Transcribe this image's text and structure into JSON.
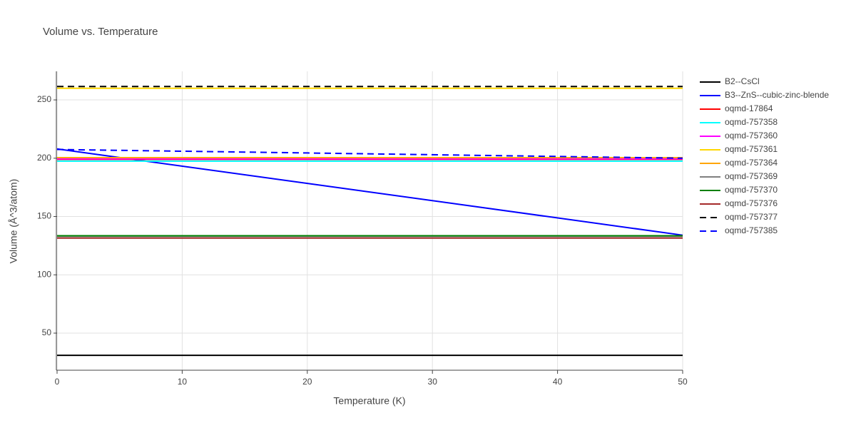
{
  "chart_data": {
    "type": "line",
    "title": "Volume vs. Temperature",
    "x_label": "Temperature (K)",
    "y_label": "Volume (Å^3/atom)",
    "xlim": [
      0,
      50
    ],
    "xticks": [
      0,
      10,
      20,
      30,
      40,
      50
    ],
    "ylim": [
      18.2,
      274.5
    ],
    "yticks": [
      50,
      100,
      150,
      200,
      250
    ],
    "grid": true,
    "legend": "right",
    "series": [
      {
        "name": "B2--CsCl",
        "color": "#000000",
        "dash": "solid",
        "x": [
          0,
          50
        ],
        "values": [
          31,
          31
        ]
      },
      {
        "name": "B3--ZnS--cubic-zinc-blende",
        "color": "#0000ff",
        "dash": "solid",
        "x": [
          0,
          50
        ],
        "values": [
          208,
          134
        ]
      },
      {
        "name": "oqmd-17864",
        "color": "#ff0000",
        "dash": "solid",
        "x": [
          0,
          50
        ],
        "values": [
          199,
          199
        ]
      },
      {
        "name": "oqmd-757358",
        "color": "#00ffff",
        "dash": "solid",
        "x": [
          0,
          50
        ],
        "values": [
          197.5,
          197.5
        ]
      },
      {
        "name": "oqmd-757360",
        "color": "#ff00ff",
        "dash": "solid",
        "x": [
          0,
          50
        ],
        "values": [
          199.5,
          199.5
        ]
      },
      {
        "name": "oqmd-757361",
        "color": "#ffd700",
        "dash": "solid",
        "x": [
          0,
          50
        ],
        "values": [
          260,
          260
        ]
      },
      {
        "name": "oqmd-757364",
        "color": "#ffa500",
        "dash": "solid",
        "x": [
          0,
          50
        ],
        "values": [
          200.5,
          200.5
        ]
      },
      {
        "name": "oqmd-757369",
        "color": "#808080",
        "dash": "solid",
        "x": [
          0,
          50
        ],
        "values": [
          133,
          133
        ]
      },
      {
        "name": "oqmd-757370",
        "color": "#008000",
        "dash": "solid",
        "x": [
          0,
          50
        ],
        "values": [
          133.5,
          133.5
        ]
      },
      {
        "name": "oqmd-757376",
        "color": "#a52a2a",
        "dash": "solid",
        "x": [
          0,
          50
        ],
        "values": [
          131.5,
          131.5
        ]
      },
      {
        "name": "oqmd-757377",
        "color": "#000000",
        "dash": "dash",
        "x": [
          0,
          50
        ],
        "values": [
          261.5,
          261.5
        ]
      },
      {
        "name": "oqmd-757385",
        "color": "#0000ff",
        "dash": "dash",
        "x": [
          0,
          10,
          20,
          30,
          40,
          50
        ],
        "values": [
          207.5,
          206,
          204.5,
          203,
          201.5,
          200
        ]
      }
    ]
  }
}
